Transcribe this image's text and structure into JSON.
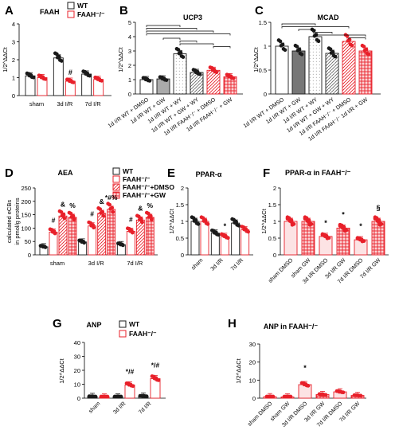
{
  "colors": {
    "wt": "#1a1a1a",
    "ko": "#e8202a",
    "ko_light": "#f3a3a6",
    "gray": "#9a9a9a",
    "dark_gray": "#555555"
  },
  "chart_data": [
    {
      "panel": "A",
      "type": "bar",
      "title": "FAAH",
      "ylabel": "1/2^ΔΔCt",
      "ylim": [
        0,
        4
      ],
      "yticks": [
        0,
        1,
        2,
        3,
        4
      ],
      "categories": [
        "sham",
        "3d I/R",
        "7d I/R"
      ],
      "legend": [
        "WT",
        "FAAH⁻/⁻"
      ],
      "series": [
        {
          "name": "WT",
          "values": [
            1.1,
            2.1,
            1.2
          ]
        },
        {
          "name": "FAAH⁻/⁻",
          "values": [
            1.0,
            0.8,
            0.9
          ]
        }
      ],
      "annotations": [
        {
          "category": "3d I/R",
          "series": "FAAH⁻/⁻",
          "text": "#"
        }
      ]
    },
    {
      "panel": "B",
      "type": "bar",
      "title": "UCP3",
      "ylabel": "1/2^ΔΔCt",
      "ylim": [
        0,
        5
      ],
      "yticks": [
        0,
        1,
        2,
        3,
        4,
        5
      ],
      "categories": [
        "1d I/R WT + DMSO",
        "1d I/R WT + GW",
        "1d I/R WT + WY",
        "1d I/R WT + GW + WY",
        "1d I/R FAAH⁻/⁻ + DMSO",
        "1d I/R FAAH⁻/⁻ + GW"
      ],
      "values": [
        1.0,
        1.05,
        2.8,
        1.5,
        1.65,
        1.2
      ]
    },
    {
      "panel": "C",
      "type": "bar",
      "title": "MCAD",
      "ylabel": "1/2^ΔΔCt",
      "ylim": [
        0,
        1.5
      ],
      "yticks": [
        0.0,
        0.5,
        1.0,
        1.5
      ],
      "categories": [
        "1d I/R WT + DMSO",
        "1d I/R WT + GW",
        "1d I/R WT + WY",
        "1d I/R WT + GW + WY",
        "1d I/R FAAH⁻/⁻ + DMSO",
        "1d I/R FAAH⁻/⁻ 1d I/R + GW"
      ],
      "values": [
        1.0,
        0.9,
        1.2,
        0.85,
        1.1,
        0.9
      ]
    },
    {
      "panel": "D",
      "type": "bar",
      "title": "AEA",
      "ylabel": "calculated eCBs in pmol/g proteins",
      "ylim": [
        0,
        250
      ],
      "yticks": [
        0,
        50,
        100,
        150,
        200,
        250
      ],
      "categories": [
        "sham",
        "3d I/R",
        "7d I/R"
      ],
      "legend": [
        "WT",
        "FAAH⁻/⁻",
        "FAAH⁻/⁻+DMSO",
        "FAAH⁻/⁻+GW"
      ],
      "series": [
        {
          "name": "WT",
          "values": [
            30,
            48,
            38
          ]
        },
        {
          "name": "FAAH⁻/⁻",
          "values": [
            85,
            108,
            88
          ]
        },
        {
          "name": "FAAH⁻/⁻+DMSO",
          "values": [
            145,
            155,
            130
          ]
        },
        {
          "name": "FAAH⁻/⁻+GW",
          "values": [
            140,
            170,
            140
          ]
        }
      ],
      "annotations": [
        {
          "category": "sham",
          "text": "#"
        },
        {
          "category": "sham",
          "text": "&"
        },
        {
          "category": "sham",
          "text": "%"
        },
        {
          "category": "3d I/R",
          "text": "#"
        },
        {
          "category": "3d I/R",
          "text": "&"
        },
        {
          "category": "3d I/R",
          "text": "*#%"
        },
        {
          "category": "7d I/R",
          "text": "#"
        },
        {
          "category": "7d I/R",
          "text": "&"
        },
        {
          "category": "7d I/R",
          "text": "%"
        }
      ]
    },
    {
      "panel": "E",
      "type": "bar",
      "title": "PPAR-α",
      "ylabel": "1/2^ΔΔCt",
      "ylim": [
        0,
        2.0
      ],
      "yticks": [
        0.0,
        0.5,
        1.0,
        1.5,
        2.0
      ],
      "categories": [
        "sham",
        "3d I/R",
        "7d I/R"
      ],
      "series": [
        {
          "name": "WT",
          "values": [
            1.0,
            0.65,
            0.95
          ]
        },
        {
          "name": "FAAH⁻/⁻",
          "values": [
            1.0,
            0.55,
            0.75
          ]
        }
      ],
      "annotations": [
        {
          "category": "3d I/R",
          "series": "FAAH⁻/⁻",
          "text": "*"
        }
      ]
    },
    {
      "panel": "F",
      "type": "bar",
      "title": "PPAR-α in FAAH⁻/⁻",
      "ylabel": "1/2^ΔΔCt",
      "ylim": [
        0,
        2.0
      ],
      "yticks": [
        0.0,
        0.5,
        1.0,
        1.5,
        2.0
      ],
      "categories": [
        "sham DMSO",
        "sham GW",
        "3d I/R DMSO",
        "3d I/R GW",
        "7d I/R DMSO",
        "7d I/R GW"
      ],
      "values": [
        1.0,
        1.0,
        0.55,
        0.8,
        0.45,
        1.0
      ],
      "annotations": [
        {
          "category": "3d I/R DMSO",
          "text": "*"
        },
        {
          "category": "3d I/R GW",
          "text": "*"
        },
        {
          "category": "7d I/R DMSO",
          "text": "*"
        },
        {
          "category": "7d I/R GW",
          "text": "§"
        }
      ]
    },
    {
      "panel": "G",
      "type": "bar",
      "title": "ANP",
      "ylabel": "1/2^ΔΔCt",
      "ylim": [
        0,
        40
      ],
      "yticks": [
        0,
        10,
        20,
        30,
        40
      ],
      "categories": [
        "sham",
        "3d I/R",
        "7d I/R"
      ],
      "legend": [
        "WT",
        "FAAH⁻/⁻"
      ],
      "series": [
        {
          "name": "WT",
          "values": [
            1.2,
            0.8,
            1.5
          ]
        },
        {
          "name": "FAAH⁻/⁻",
          "values": [
            0.8,
            9.5,
            14
          ]
        }
      ],
      "annotations": [
        {
          "category": "3d I/R",
          "series": "FAAH⁻/⁻",
          "text": "*/#"
        },
        {
          "category": "7d I/R",
          "series": "FAAH⁻/⁻",
          "text": "*/#"
        }
      ]
    },
    {
      "panel": "H",
      "type": "bar",
      "title": "ANP in FAAH⁻/⁻",
      "ylabel": "1/2^ΔΔCt",
      "ylim": [
        0,
        30
      ],
      "yticks": [
        0,
        10,
        20,
        30
      ],
      "categories": [
        "sham DMSO",
        "sham GW",
        "3d I/R DMSO",
        "3d I/R GW",
        "7d I/R DMSO",
        "7d I/R GW"
      ],
      "values": [
        0.8,
        0.7,
        7.5,
        2.0,
        3.5,
        1.5
      ],
      "annotations": [
        {
          "category": "3d I/R DMSO",
          "text": "*"
        }
      ]
    }
  ]
}
